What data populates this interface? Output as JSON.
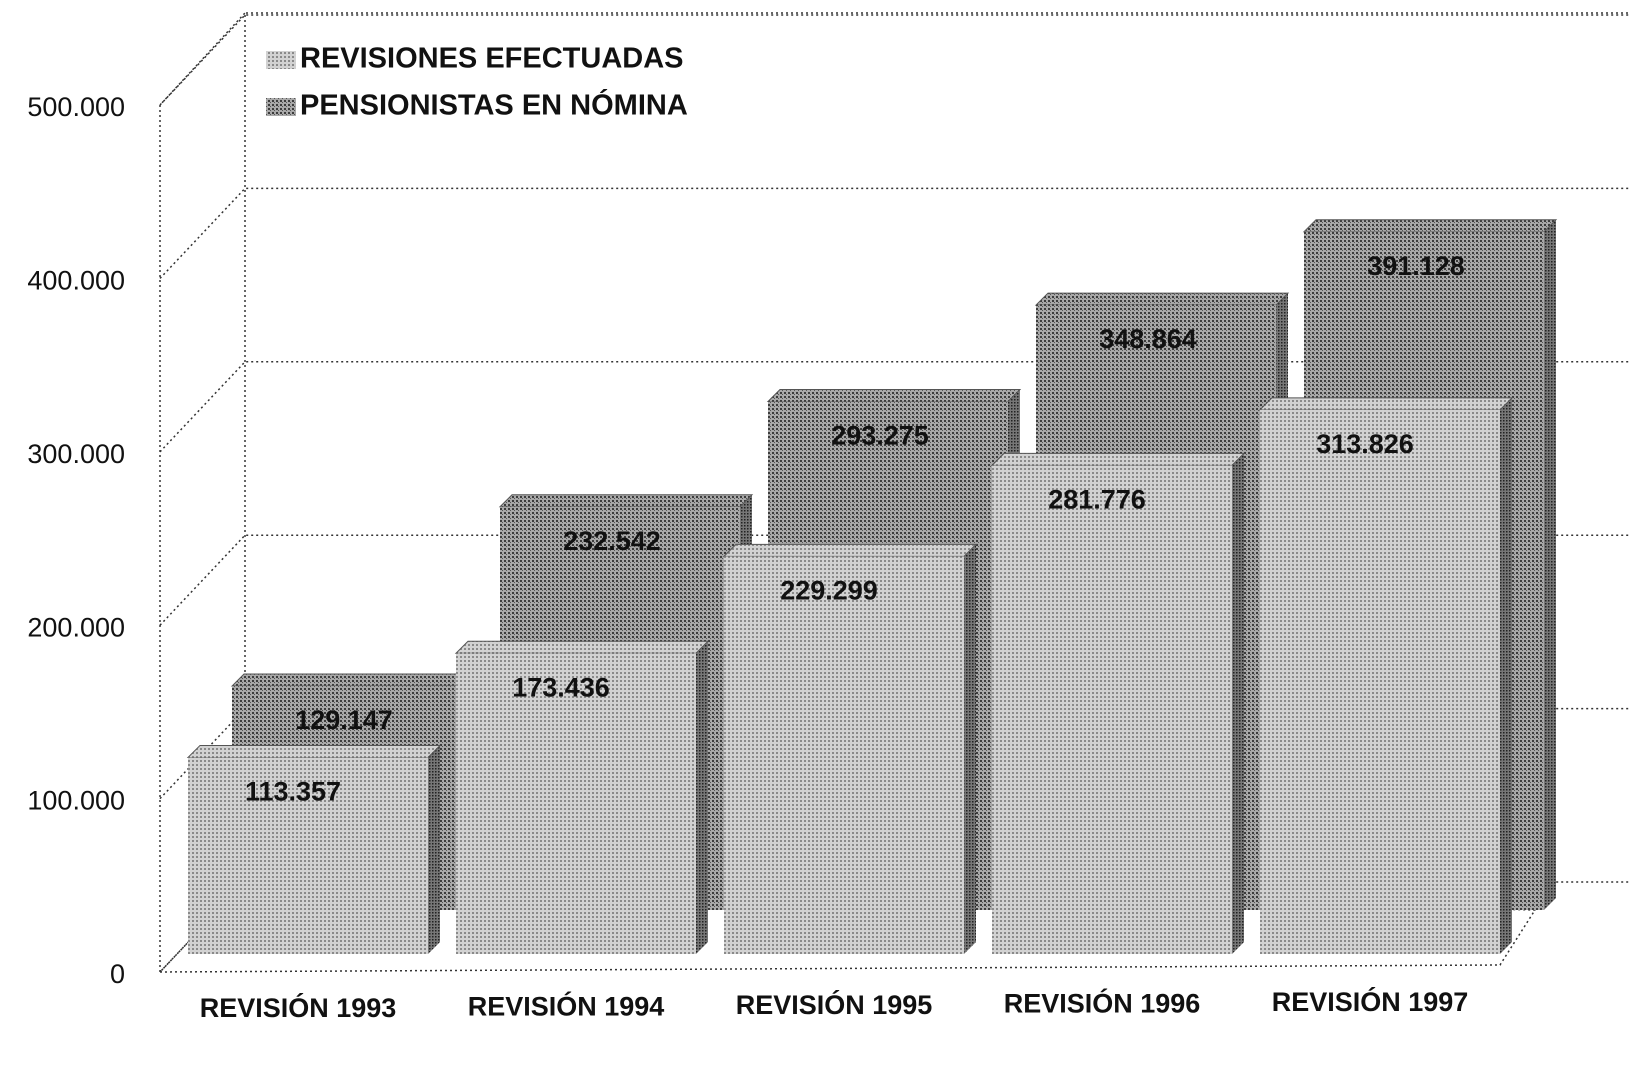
{
  "chart_data": {
    "type": "bar3d",
    "categories": [
      "REVISIÓN 1993",
      "REVISIÓN 1994",
      "REVISIÓN 1995",
      "REVISIÓN 1996",
      "REVISIÓN 1997"
    ],
    "series": [
      {
        "name": "REVISIONES EFECTUADAS",
        "color": "#bdbdbd",
        "values": [
          113357,
          173436,
          229299,
          281776,
          313826
        ],
        "value_labels": [
          "113.357",
          "173.436",
          "229.299",
          "281.776",
          "313.826"
        ]
      },
      {
        "name": "PENSIONISTAS EN NÓMINA",
        "color": "#8c8c8c",
        "values": [
          129147,
          232542,
          293275,
          348864,
          391128
        ],
        "value_labels": [
          "129.147",
          "232.542",
          "293.275",
          "348.864",
          "391.128"
        ]
      }
    ],
    "ylim": [
      0,
      500000
    ],
    "yticks": [
      0,
      {
        "value": 100000,
        "label": "100.000"
      },
      {
        "value": 200000,
        "label": "200.000"
      },
      {
        "value": 300000,
        "label": "300.000"
      },
      {
        "value": 400000,
        "label": "400.000"
      },
      {
        "value": 500000,
        "label": "500.000"
      }
    ],
    "grid": true
  }
}
